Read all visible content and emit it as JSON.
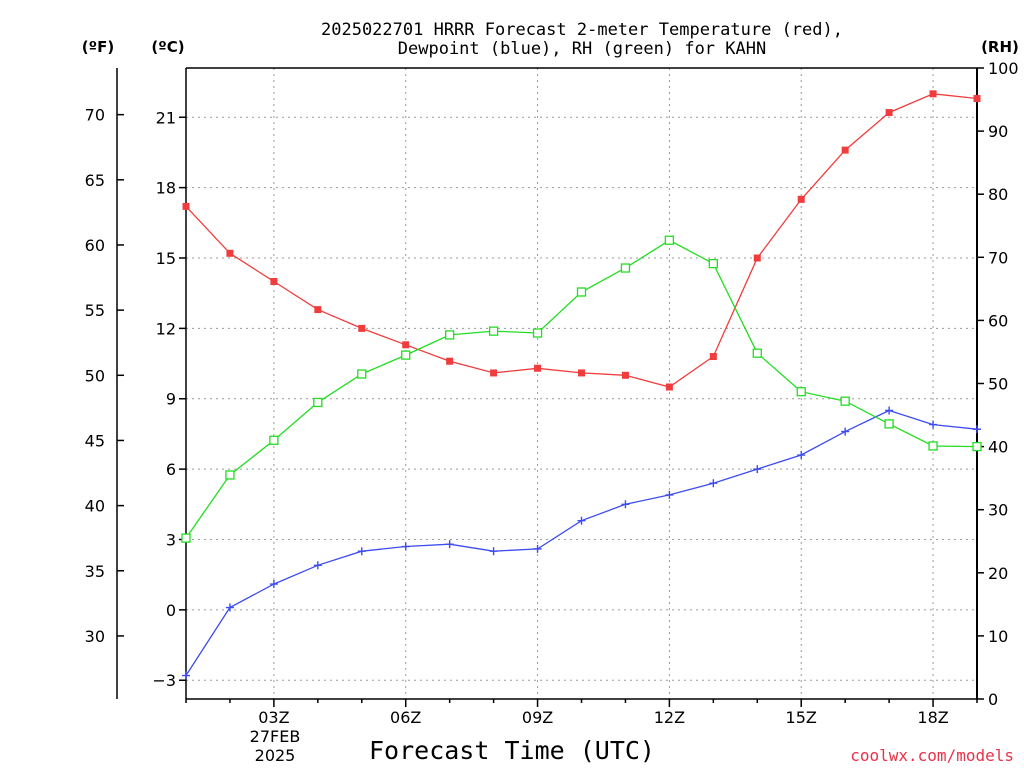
{
  "chart_data": {
    "type": "line",
    "title": [
      "2025022701 HRRR Forecast 2-meter Temperature (red),",
      "Dewpoint (blue), RH (green) for KAHN"
    ],
    "xlabel": "Forecast Time (UTC)",
    "date_label": [
      "27FEB",
      "2025"
    ],
    "credit": "coolwx.com/models",
    "units": {
      "fahrenheit": "(ºF)",
      "celsius": "(ºC)",
      "rh": "(RH)"
    },
    "x": [
      1,
      2,
      3,
      4,
      5,
      6,
      7,
      8,
      9,
      10,
      11,
      12,
      13,
      14,
      15,
      16,
      17,
      18,
      19
    ],
    "xlim": [
      1,
      19
    ],
    "x_ticks": [
      {
        "x": 3,
        "label": "03Z"
      },
      {
        "x": 6,
        "label": "06Z"
      },
      {
        "x": 9,
        "label": "09Z"
      },
      {
        "x": 12,
        "label": "12Z"
      },
      {
        "x": 15,
        "label": "15Z"
      },
      {
        "x": 18,
        "label": "18Z"
      }
    ],
    "celsius_axis": {
      "ylim": [
        -3.8,
        23.1
      ],
      "ticks": [
        -3,
        0,
        3,
        6,
        9,
        12,
        15,
        18,
        21
      ],
      "tick_labels": [
        "−3",
        "0",
        "3",
        "6",
        "9",
        "12",
        "15",
        "18",
        "21"
      ]
    },
    "fahrenheit_axis": {
      "ticks": [
        30,
        35,
        40,
        45,
        50,
        55,
        60,
        65,
        70
      ]
    },
    "rh_axis": {
      "ylim": [
        0,
        100
      ],
      "ticks": [
        0,
        10,
        20,
        30,
        40,
        50,
        60,
        70,
        80,
        90,
        100
      ]
    },
    "grid": true,
    "series": [
      {
        "color": "#f03c3c",
        "marker": "filled-square",
        "axis": "celsius",
        "values": [
          17.2,
          15.2,
          14.0,
          12.8,
          12.0,
          11.3,
          10.6,
          10.1,
          10.3,
          10.1,
          10.0,
          9.5,
          10.8,
          15.0,
          17.5,
          19.6,
          21.2,
          22.0,
          21.8
        ]
      },
      {
        "color": "#3c4cf0",
        "marker": "plus",
        "axis": "celsius",
        "values": [
          -2.8,
          0.1,
          1.1,
          1.9,
          2.5,
          2.7,
          2.8,
          2.5,
          2.6,
          3.8,
          4.5,
          4.9,
          5.4,
          6.0,
          6.6,
          7.6,
          8.5,
          7.9,
          7.7
        ]
      },
      {
        "color": "#22dd22",
        "marker": "open-square",
        "axis": "rh",
        "values": [
          25.5,
          35.5,
          41.0,
          47.0,
          51.5,
          54.5,
          57.7,
          58.3,
          58.0,
          64.5,
          68.3,
          72.7,
          69.0,
          54.8,
          48.7,
          47.2,
          43.6,
          40.1,
          40.0
        ]
      }
    ]
  }
}
